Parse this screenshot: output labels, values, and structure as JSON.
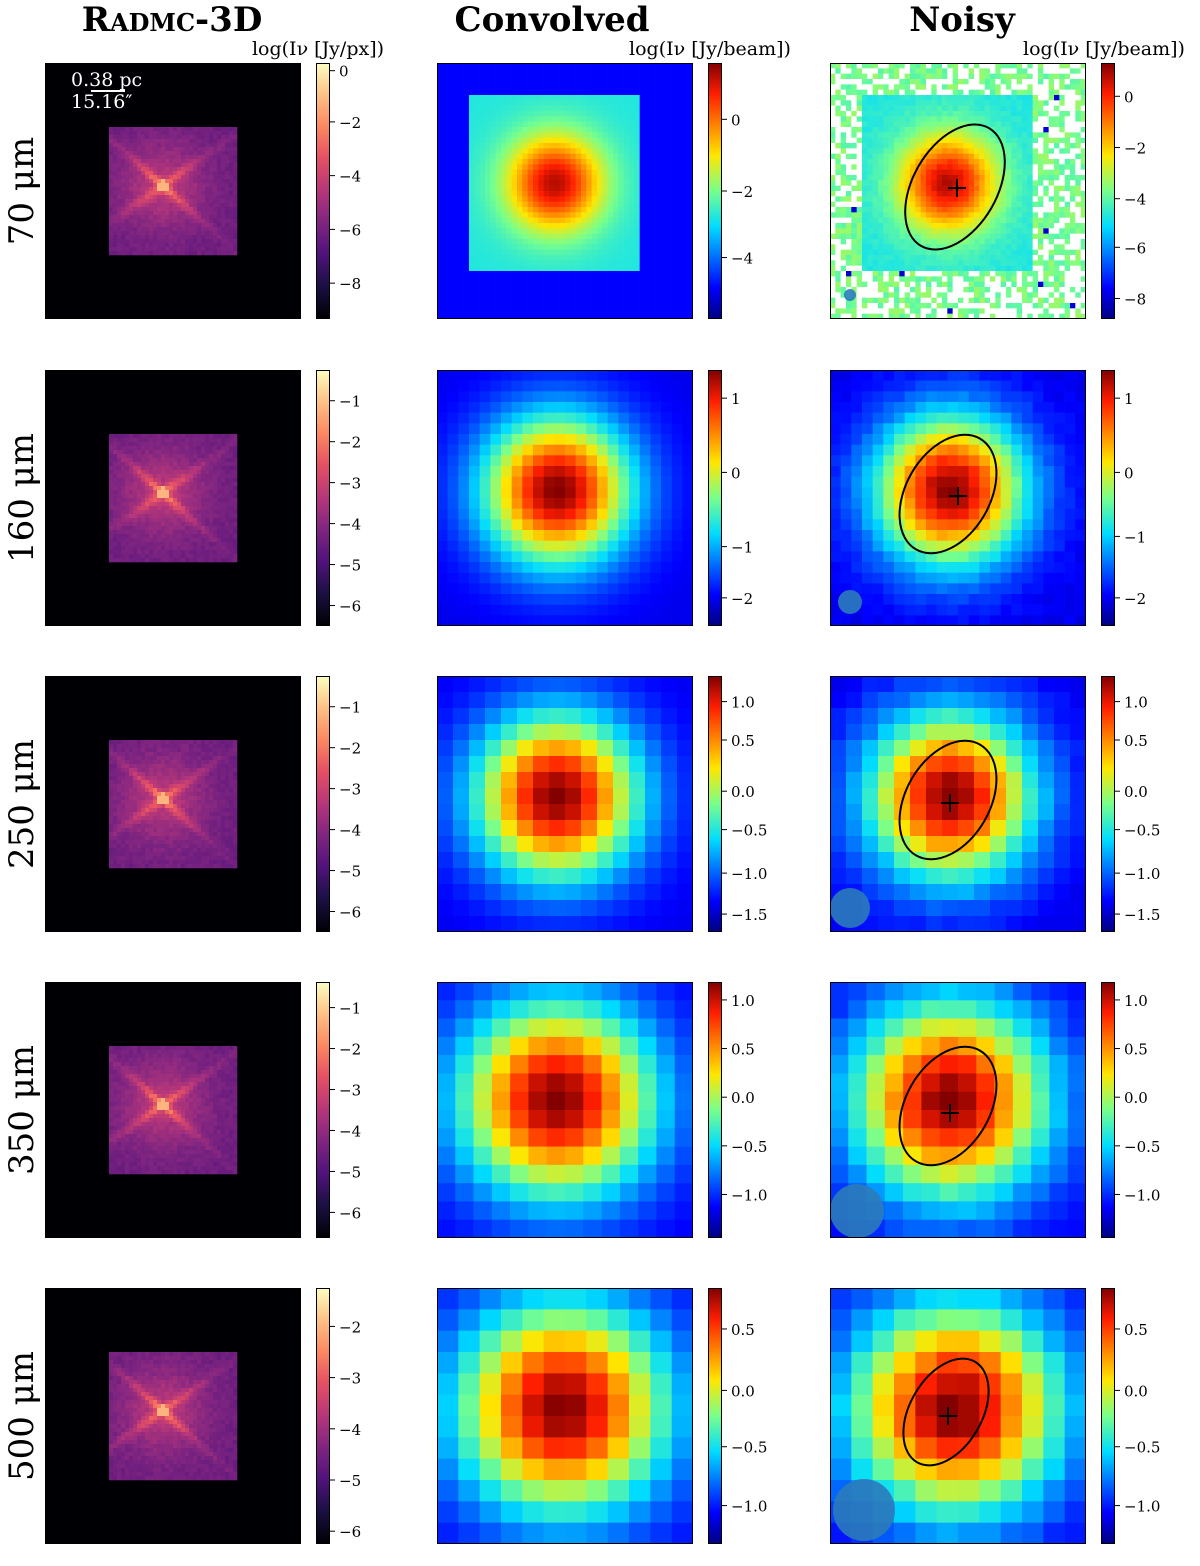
{
  "figure": {
    "columns": [
      {
        "id": "radmc",
        "title_main": "Radmc-3D",
        "colorbar_label": "log(Iν [Jy/px])"
      },
      {
        "id": "convolved",
        "title_main": "Convolved",
        "colorbar_label": "log(Iν [Jy/beam])"
      },
      {
        "id": "noisy",
        "title_main": "Noisy",
        "colorbar_label": "log(Iν [Jy/beam])"
      }
    ],
    "scale_bar": {
      "line1": "0.38 pc",
      "line2": "15.16″"
    },
    "rows": [
      {
        "label": "70 μm",
        "radmc_ticks": [
          "0",
          "−2",
          "−4",
          "−6",
          "−8"
        ],
        "conv_ticks": [
          "0",
          "−2",
          "−4"
        ],
        "noisy_ticks": [
          "0",
          "−2",
          "−4",
          "−6",
          "−8"
        ]
      },
      {
        "label": "160 μm",
        "radmc_ticks": [
          "−1",
          "−2",
          "−3",
          "−4",
          "−5",
          "−6"
        ],
        "conv_ticks": [
          "1",
          "0",
          "−1",
          "−2"
        ],
        "noisy_ticks": [
          "1",
          "0",
          "−1",
          "−2"
        ]
      },
      {
        "label": "250 μm",
        "radmc_ticks": [
          "−1",
          "−2",
          "−3",
          "−4",
          "−5",
          "−6"
        ],
        "conv_ticks": [
          "1.0",
          "0.5",
          "0.0",
          "−0.5",
          "−1.0",
          "−1.5"
        ],
        "noisy_ticks": [
          "1.0",
          "0.5",
          "0.0",
          "−0.5",
          "−1.0",
          "−1.5"
        ]
      },
      {
        "label": "350 μm",
        "radmc_ticks": [
          "−1",
          "−2",
          "−3",
          "−4",
          "−5",
          "−6"
        ],
        "conv_ticks": [
          "1.0",
          "0.5",
          "0.0",
          "−0.5",
          "−1.0"
        ],
        "noisy_ticks": [
          "1.0",
          "0.5",
          "0.0",
          "−0.5",
          "−1.0"
        ]
      },
      {
        "label": "500 μm",
        "radmc_ticks": [
          "−2",
          "−3",
          "−4",
          "−5",
          "−6"
        ],
        "conv_ticks": [
          "0.5",
          "0.0",
          "−0.5",
          "−1.0"
        ],
        "noisy_ticks": [
          "0.5",
          "0.0",
          "−0.5",
          "−1.0"
        ]
      }
    ]
  }
}
